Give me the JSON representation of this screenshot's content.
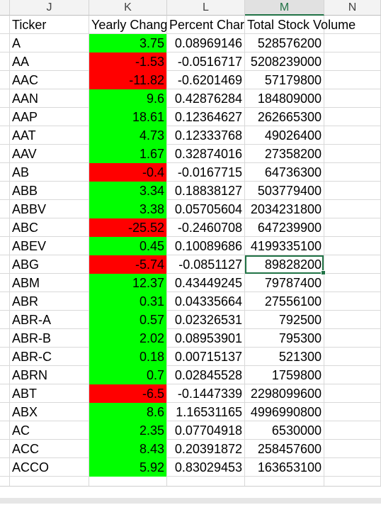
{
  "columns": [
    {
      "letter": "J",
      "active": false
    },
    {
      "letter": "K",
      "active": false
    },
    {
      "letter": "L",
      "active": false
    },
    {
      "letter": "M",
      "active": true
    },
    {
      "letter": "N",
      "active": false
    }
  ],
  "headers": [
    "Ticker",
    "Yearly Chang",
    "Percent Char",
    "Total Stock Volume"
  ],
  "colors": {
    "positive": "#00ff00",
    "negative": "#ff0000",
    "selection": "#217346"
  },
  "selected_cell": {
    "row": 12,
    "column": "M"
  },
  "rows": [
    {
      "ticker": "A",
      "yearly_change": "3.75",
      "percent_change": "0.08969146",
      "total_volume": "528576200",
      "negative": false
    },
    {
      "ticker": "AA",
      "yearly_change": "-1.53",
      "percent_change": "-0.0516717",
      "total_volume": "5208239000",
      "negative": true
    },
    {
      "ticker": "AAC",
      "yearly_change": "-11.82",
      "percent_change": "-0.6201469",
      "total_volume": "57179800",
      "negative": true
    },
    {
      "ticker": "AAN",
      "yearly_change": "9.6",
      "percent_change": "0.42876284",
      "total_volume": "184809000",
      "negative": false
    },
    {
      "ticker": "AAP",
      "yearly_change": "18.61",
      "percent_change": "0.12364627",
      "total_volume": "262665300",
      "negative": false
    },
    {
      "ticker": "AAT",
      "yearly_change": "4.73",
      "percent_change": "0.12333768",
      "total_volume": "49026400",
      "negative": false
    },
    {
      "ticker": "AAV",
      "yearly_change": "1.67",
      "percent_change": "0.32874016",
      "total_volume": "27358200",
      "negative": false
    },
    {
      "ticker": "AB",
      "yearly_change": "-0.4",
      "percent_change": "-0.0167715",
      "total_volume": "64736300",
      "negative": true
    },
    {
      "ticker": "ABB",
      "yearly_change": "3.34",
      "percent_change": "0.18838127",
      "total_volume": "503779400",
      "negative": false
    },
    {
      "ticker": "ABBV",
      "yearly_change": "3.38",
      "percent_change": "0.05705604",
      "total_volume": "2034231800",
      "negative": false
    },
    {
      "ticker": "ABC",
      "yearly_change": "-25.52",
      "percent_change": "-0.2460708",
      "total_volume": "647239900",
      "negative": true
    },
    {
      "ticker": "ABEV",
      "yearly_change": "0.45",
      "percent_change": "0.10089686",
      "total_volume": "4199335100",
      "negative": false
    },
    {
      "ticker": "ABG",
      "yearly_change": "-5.74",
      "percent_change": "-0.0851127",
      "total_volume": "89828200",
      "negative": true
    },
    {
      "ticker": "ABM",
      "yearly_change": "12.37",
      "percent_change": "0.43449245",
      "total_volume": "79787400",
      "negative": false
    },
    {
      "ticker": "ABR",
      "yearly_change": "0.31",
      "percent_change": "0.04335664",
      "total_volume": "27556100",
      "negative": false
    },
    {
      "ticker": "ABR-A",
      "yearly_change": "0.57",
      "percent_change": "0.02326531",
      "total_volume": "792500",
      "negative": false
    },
    {
      "ticker": "ABR-B",
      "yearly_change": "2.02",
      "percent_change": "0.08953901",
      "total_volume": "795300",
      "negative": false
    },
    {
      "ticker": "ABR-C",
      "yearly_change": "0.18",
      "percent_change": "0.00715137",
      "total_volume": "521300",
      "negative": false
    },
    {
      "ticker": "ABRN",
      "yearly_change": "0.7",
      "percent_change": "0.02845528",
      "total_volume": "1759800",
      "negative": false
    },
    {
      "ticker": "ABT",
      "yearly_change": "-6.5",
      "percent_change": "-0.1447339",
      "total_volume": "2298099600",
      "negative": true
    },
    {
      "ticker": "ABX",
      "yearly_change": "8.6",
      "percent_change": "1.16531165",
      "total_volume": "4996990800",
      "negative": false
    },
    {
      "ticker": "AC",
      "yearly_change": "2.35",
      "percent_change": "0.07704918",
      "total_volume": "6530000",
      "negative": false
    },
    {
      "ticker": "ACC",
      "yearly_change": "8.43",
      "percent_change": "0.20391872",
      "total_volume": "258457600",
      "negative": false
    },
    {
      "ticker": "ACCO",
      "yearly_change": "5.92",
      "percent_change": "0.83029453",
      "total_volume": "163653100",
      "negative": false
    }
  ]
}
